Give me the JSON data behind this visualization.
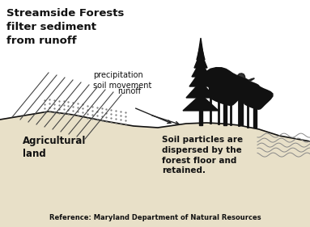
{
  "background_color": "#ffffff",
  "title_text": "Streamside Forests\nfilter sediment\nfrom runoff",
  "label_precipitation": "precipitation\nsoil movement",
  "label_runoff": "runoff",
  "label_agri": "Agricultural\nland",
  "label_soil": "Soil particles are\ndispersed by the\nforest floor and\nretained.",
  "label_ref": "Reference: Maryland Department of Natural Resources",
  "ground_color": "#e8e0c8",
  "tree_color": "#111111",
  "line_color": "#111111",
  "text_color": "#111111",
  "water_line_color": "#888888"
}
